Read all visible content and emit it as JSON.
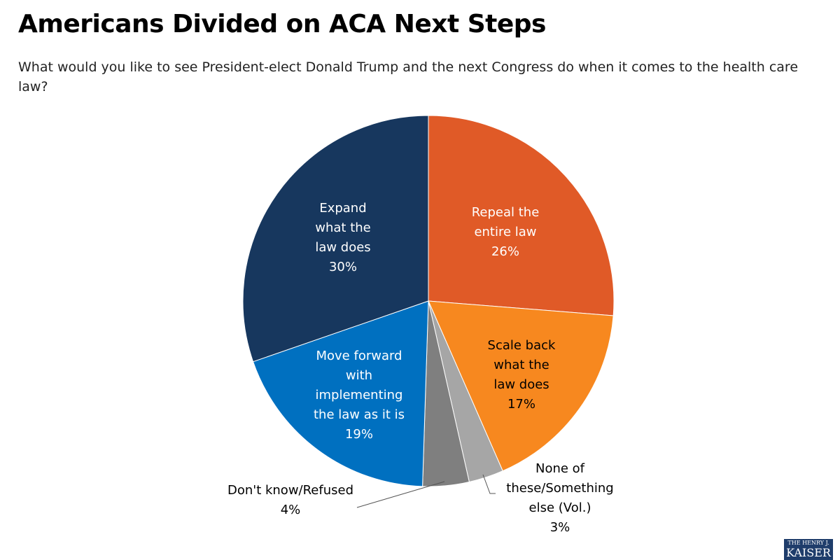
{
  "chart_data": {
    "type": "pie",
    "title": "Americans Divided on ACA Next Steps",
    "subtitle": "What would you like to see President-elect Donald Trump and the next Congress do when it comes to the health care law?",
    "categories": [
      "Repeal the entire law",
      "Scale back what the law does",
      "None of these/Something else (Vol.)",
      "Don't know/Refused",
      "Move forward with implementing the law as it is",
      "Expand what the law does"
    ],
    "values": [
      26,
      17,
      3,
      4,
      19,
      30
    ],
    "value_labels": [
      "26%",
      "17%",
      "3%",
      "4%",
      "19%",
      "30%"
    ],
    "colors": [
      "#e05a27",
      "#f7881f",
      "#a6a6a6",
      "#7f7f7f",
      "#0070c0",
      "#17375e"
    ]
  },
  "logo": [
    "THE HENRY J.",
    "KAISER"
  ]
}
